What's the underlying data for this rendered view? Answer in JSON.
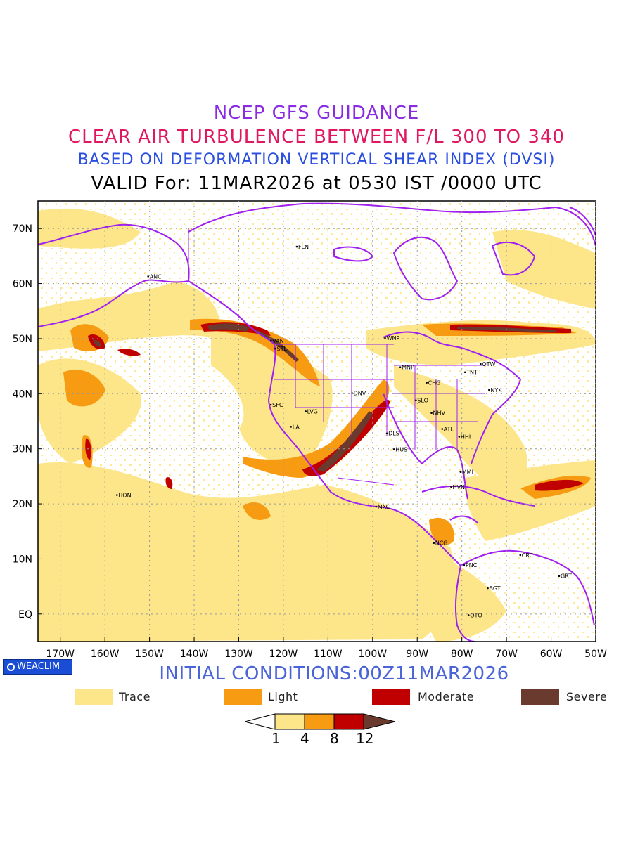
{
  "header": {
    "line1": "NCEP GFS GUIDANCE",
    "line2": "CLEAR AIR TURBULENCE BETWEEN F/L 300 TO 340",
    "line3": "BASED ON DEFORMATION VERTICAL SHEAR INDEX (DVSI)",
    "line4": "VALID For: 11MAR2026 at 0530 IST /0000 UTC"
  },
  "colors": {
    "line1": "#8a2be2",
    "line2": "#e0185f",
    "line3": "#2a4ee0",
    "trace": "#fde68a",
    "light": "#f79b12",
    "moderate": "#c00000",
    "severe": "#6b3a2e",
    "borders": "#a020f0"
  },
  "map": {
    "lat_labels": [
      "70N",
      "60N",
      "50N",
      "40N",
      "30N",
      "20N",
      "10N",
      "EQ"
    ],
    "lat_values": [
      70,
      60,
      50,
      40,
      30,
      20,
      10,
      0
    ],
    "lon_labels": [
      "170W",
      "160W",
      "150W",
      "140W",
      "130W",
      "120W",
      "110W",
      "100W",
      "90W",
      "80W",
      "70W",
      "60W",
      "50W"
    ],
    "lon_values": [
      -170,
      -160,
      -150,
      -140,
      -130,
      -120,
      -110,
      -100,
      -90,
      -80,
      -70,
      -60,
      -50
    ],
    "stations": [
      {
        "code": "FLN",
        "lon": -117,
        "lat": 66.7
      },
      {
        "code": "ANC",
        "lon": -150.3,
        "lat": 61.3
      },
      {
        "code": "VAN",
        "lon": -122.8,
        "lat": 49.6
      },
      {
        "code": "STL",
        "lon": -121.8,
        "lat": 48.2
      },
      {
        "code": "WNP",
        "lon": -97.2,
        "lat": 50.1
      },
      {
        "code": "MNP",
        "lon": -93.8,
        "lat": 44.8
      },
      {
        "code": "TNT",
        "lon": -79.3,
        "lat": 43.9
      },
      {
        "code": "OTW",
        "lon": -75.8,
        "lat": 45.4
      },
      {
        "code": "CHG",
        "lon": -87.9,
        "lat": 42.0
      },
      {
        "code": "NYK",
        "lon": -73.9,
        "lat": 40.7
      },
      {
        "code": "DNV",
        "lon": -104.6,
        "lat": 40.1
      },
      {
        "code": "SFC",
        "lon": -122.8,
        "lat": 38.0
      },
      {
        "code": "LVG",
        "lon": -115.0,
        "lat": 36.8
      },
      {
        "code": "SLO",
        "lon": -90.3,
        "lat": 38.8
      },
      {
        "code": "NHV",
        "lon": -86.8,
        "lat": 36.5
      },
      {
        "code": "LA",
        "lon": -118.3,
        "lat": 34.0
      },
      {
        "code": "DLS",
        "lon": -96.8,
        "lat": 32.8
      },
      {
        "code": "ATL",
        "lon": -84.4,
        "lat": 33.6
      },
      {
        "code": "HHI",
        "lon": -80.6,
        "lat": 32.2
      },
      {
        "code": "HUS",
        "lon": -95.2,
        "lat": 29.9
      },
      {
        "code": "MMI",
        "lon": -80.3,
        "lat": 25.8
      },
      {
        "code": "HVN",
        "lon": -82.4,
        "lat": 23.1
      },
      {
        "code": "HON",
        "lon": -157.3,
        "lat": 21.6
      },
      {
        "code": "MXC",
        "lon": -99.2,
        "lat": 19.5
      },
      {
        "code": "NCG",
        "lon": -86.3,
        "lat": 12.9
      },
      {
        "code": "CRC",
        "lon": -66.9,
        "lat": 10.7
      },
      {
        "code": "PNC",
        "lon": -79.5,
        "lat": 8.9
      },
      {
        "code": "GRT",
        "lon": -58.2,
        "lat": 6.9
      },
      {
        "code": "BGT",
        "lon": -74.2,
        "lat": 4.7
      },
      {
        "code": "QTO",
        "lon": -78.5,
        "lat": -0.2
      }
    ]
  },
  "footer": {
    "badge": "WEACLIM",
    "initial_conditions": "INITIAL CONDITIONS:00Z11MAR2026"
  },
  "legend": [
    {
      "label": "Trace",
      "color": "#fde68a"
    },
    {
      "label": "Light",
      "color": "#f79b12"
    },
    {
      "label": "Moderate",
      "color": "#c00000"
    },
    {
      "label": "Severe",
      "color": "#6b3a2e"
    }
  ],
  "scale": {
    "levels": [
      "1",
      "4",
      "8",
      "12"
    ],
    "values": [
      1,
      4,
      8,
      12
    ]
  }
}
